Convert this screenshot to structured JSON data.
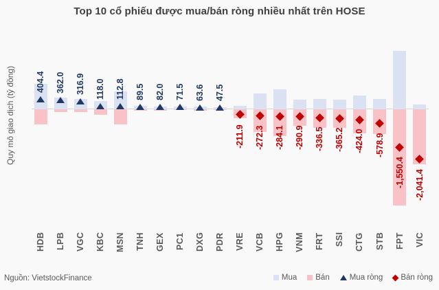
{
  "title": "Top 10 cổ phiếu được mua/bán ròng nhiều nhất trên HOSE",
  "source": "Nguồn: VietstockFinance",
  "y_axis_label": "Quy mô giao dịch (tỷ đồng)",
  "colors": {
    "buy_bar": "#d9e1f2",
    "sell_bar": "#f8c2c6",
    "net_buy": "#1f3864",
    "net_sell": "#c00000",
    "axis_text": "#595959",
    "title_text": "#404040",
    "zero_line": "#d4d4d4",
    "background": "#f9f9f9"
  },
  "legend": [
    {
      "label": "Mua",
      "shape": "square",
      "color": "#d9e1f2"
    },
    {
      "label": "Bán",
      "shape": "square",
      "color": "#f8c2c6"
    },
    {
      "label": "Mua ròng",
      "shape": "triangle",
      "color": "#1f3864"
    },
    {
      "label": "Bán ròng",
      "shape": "diamond",
      "color": "#c00000"
    }
  ],
  "chart_data": {
    "type": "bar",
    "title": "Top 10 cổ phiếu được mua/bán ròng nhiều nhất trên HOSE",
    "xlabel": "",
    "ylabel": "Quy mô giao dịch (tỷ đồng)",
    "grid": false,
    "legend_position": "bottom-right",
    "categories": [
      "HDB",
      "LPB",
      "VGC",
      "KBC",
      "MSN",
      "TNH",
      "GEX",
      "PC1",
      "DXG",
      "PDR",
      "VRE",
      "VCB",
      "HPG",
      "VNM",
      "FRT",
      "SSI",
      "CTG",
      "STB",
      "FPT",
      "VIC"
    ],
    "series": [
      {
        "name": "Mua",
        "role": "bar",
        "color": "#d9e1f2",
        "estimated_from_pixels": true,
        "values": [
          1030,
          480,
          420,
          330,
          720,
          140,
          125,
          105,
          115,
          75,
          140,
          640,
          810,
          390,
          410,
          380,
          560,
          420,
          2370,
          205
        ]
      },
      {
        "name": "Bán",
        "role": "bar",
        "color": "#f8c2c6",
        "estimated_from_pixels": true,
        "values": [
          -625.6,
          -118.0,
          -103.1,
          -212.0,
          -607.2,
          -50.5,
          -43.0,
          -33.5,
          -51.4,
          -27.5,
          -351.9,
          -912.3,
          -1094.1,
          -680.9,
          -746.5,
          -745.2,
          -984.0,
          -998.9,
          -3920.4,
          -2246.4
        ]
      },
      {
        "name": "Mua ròng",
        "role": "marker-triangle",
        "color": "#1f3864",
        "values": [
          404.4,
          362.0,
          316.9,
          118.0,
          112.8,
          89.5,
          82.0,
          71.5,
          63.6,
          47.5,
          null,
          null,
          null,
          null,
          null,
          null,
          null,
          null,
          null,
          null
        ]
      },
      {
        "name": "Bán ròng",
        "role": "marker-diamond",
        "color": "#c00000",
        "values": [
          null,
          null,
          null,
          null,
          null,
          null,
          null,
          null,
          null,
          null,
          -211.9,
          -272.3,
          -284.1,
          -290.9,
          -336.5,
          -365.2,
          -424.0,
          -578.9,
          -1550.4,
          -2041.4
        ]
      }
    ],
    "net_values": [
      404.4,
      362.0,
      316.9,
      118.0,
      112.8,
      89.5,
      82.0,
      71.5,
      63.6,
      47.5,
      -211.9,
      -272.3,
      -284.1,
      -290.9,
      -336.5,
      -365.2,
      -424.0,
      -578.9,
      -1550.4,
      -2041.4
    ],
    "net_labels": [
      "404.4",
      "362.0",
      "316.9",
      "118.0",
      "112.8",
      "89.5",
      "82.0",
      "71.5",
      "63.6",
      "47.5",
      "-211.9",
      "-272.3",
      "-284.1",
      "-290.9",
      "-336.5",
      "-365.2",
      "-424.0",
      "-578.9",
      "-1,550.4",
      "-2,041.4"
    ]
  }
}
